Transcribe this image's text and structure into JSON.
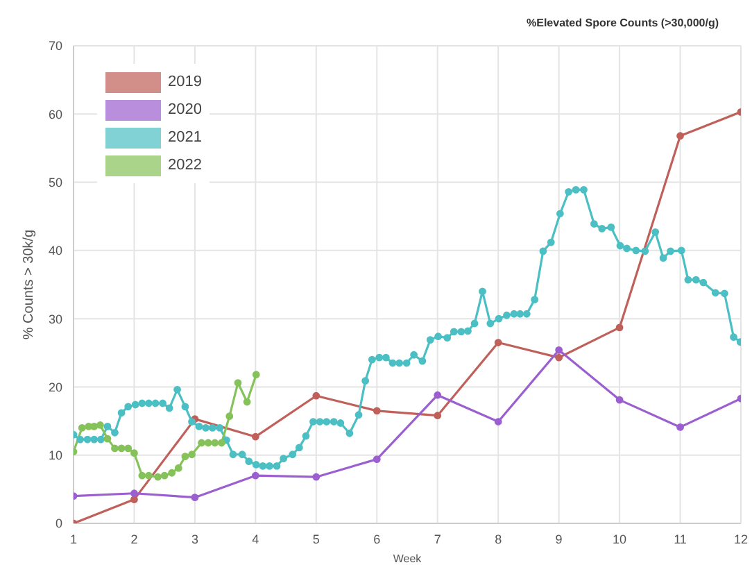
{
  "chart_data": {
    "type": "line",
    "title": "%Elevated Spore Counts (>30,000/g)",
    "xlabel": "Week",
    "ylabel": "% Counts > 30k/g",
    "xlim": [
      1,
      12
    ],
    "xticks": [
      1,
      2,
      3,
      4,
      5,
      6,
      7,
      8,
      9,
      10,
      11,
      12
    ],
    "ylim": [
      0,
      70
    ],
    "yticks": [
      0,
      10,
      20,
      30,
      40,
      50,
      60,
      70
    ],
    "grid": true,
    "legend": "top left",
    "marker": "circle",
    "line_style": "solid",
    "series": [
      {
        "name": "2019",
        "color": "#c0605a",
        "x": [
          1,
          2,
          3,
          4,
          5,
          6,
          7,
          8,
          9,
          10,
          11,
          12
        ],
        "values": [
          0,
          3.5,
          15.3,
          12.7,
          18.7,
          16.5,
          15.8,
          26.5,
          24.3,
          28.7,
          56.8,
          60.3
        ]
      },
      {
        "name": "2020",
        "color": "#9b5fcf",
        "x": [
          1,
          2,
          3,
          4,
          5,
          6,
          7,
          8,
          9,
          10,
          11,
          12
        ],
        "values": [
          4,
          4.4,
          3.8,
          7,
          6.8,
          9.4,
          18.8,
          14.9,
          25.4,
          18.1,
          14.1,
          18.3
        ]
      },
      {
        "name": "2021",
        "color": "#4bbfc4",
        "x": [
          1,
          1.11,
          1.23,
          1.34,
          1.45,
          1.56,
          1.68,
          1.79,
          1.9,
          2.02,
          2.13,
          2.24,
          2.35,
          2.47,
          2.58,
          2.71,
          2.84,
          2.95,
          3.07,
          3.18,
          3.29,
          3.41,
          3.52,
          3.63,
          3.78,
          3.89,
          4.01,
          4.12,
          4.23,
          4.35,
          4.46,
          4.61,
          4.72,
          4.83,
          4.95,
          5.06,
          5.17,
          5.29,
          5.4,
          5.55,
          5.7,
          5.81,
          5.92,
          6.04,
          6.15,
          6.26,
          6.37,
          6.49,
          6.61,
          6.75,
          6.88,
          7.01,
          7.16,
          7.27,
          7.39,
          7.5,
          7.61,
          7.74,
          7.87,
          8.01,
          8.14,
          8.26,
          8.36,
          8.47,
          8.6,
          8.74,
          8.87,
          9.02,
          9.16,
          9.28,
          9.41,
          9.58,
          9.71,
          9.86,
          10.01,
          10.12,
          10.27,
          10.42,
          10.59,
          10.72,
          10.84,
          11.02,
          11.13,
          11.26,
          11.38,
          11.58,
          11.73,
          11.88,
          11.99
        ],
        "values": [
          13,
          12.3,
          12.3,
          12.3,
          12.3,
          14.2,
          13.3,
          16.2,
          17.1,
          17.4,
          17.6,
          17.6,
          17.6,
          17.6,
          16.9,
          19.6,
          17.1,
          14.9,
          14.2,
          14,
          14,
          14,
          12.2,
          10.1,
          10.1,
          9.1,
          8.6,
          8.4,
          8.4,
          8.4,
          9.5,
          10.1,
          11.1,
          12.8,
          14.9,
          14.9,
          14.9,
          14.9,
          14.7,
          13.2,
          15.9,
          20.9,
          24,
          24.3,
          24.3,
          23.5,
          23.5,
          23.5,
          24.7,
          23.8,
          26.9,
          27.4,
          27.2,
          28.1,
          28.1,
          28.2,
          29.3,
          34,
          29.3,
          30,
          30.5,
          30.7,
          30.7,
          30.7,
          32.8,
          39.9,
          41.2,
          45.4,
          48.6,
          48.9,
          48.9,
          43.9,
          43.2,
          43.4,
          40.7,
          40.3,
          40,
          39.9,
          42.7,
          38.9,
          39.9,
          40,
          35.7,
          35.7,
          35.3,
          33.8,
          33.7,
          27.3,
          26.6
        ]
      },
      {
        "name": "2022",
        "color": "#86c25a",
        "x": [
          1,
          1.14,
          1.25,
          1.34,
          1.44,
          1.56,
          1.68,
          1.79,
          1.9,
          2,
          2.13,
          2.24,
          2.39,
          2.5,
          2.62,
          2.73,
          2.84,
          2.95,
          3.11,
          3.22,
          3.33,
          3.44,
          3.57,
          3.71,
          3.86,
          4.01
        ],
        "values": [
          10.5,
          14,
          14.2,
          14.2,
          14.4,
          12.4,
          11,
          11,
          11,
          10.3,
          7,
          7,
          6.8,
          7,
          7.4,
          8.1,
          9.8,
          10.1,
          11.8,
          11.8,
          11.8,
          11.8,
          15.7,
          20.6,
          17.8,
          21.8
        ]
      }
    ]
  }
}
